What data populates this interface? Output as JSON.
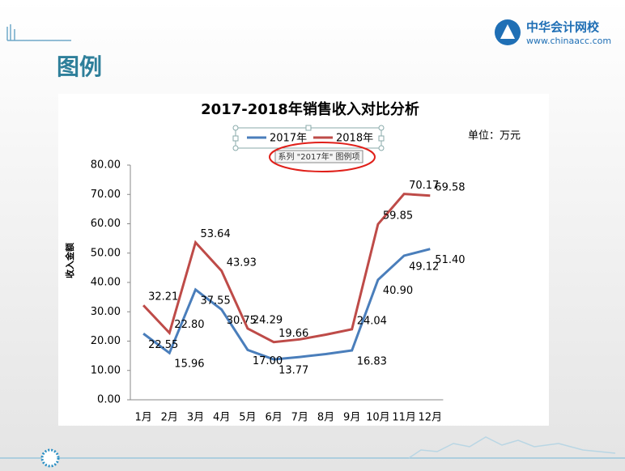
{
  "slide": {
    "title": "图例",
    "logo_name": "中华会计网校",
    "logo_url": "www.chinaacc.com",
    "tooltip": "系列 \"2017年\" 图例项"
  },
  "chart_data": {
    "type": "line",
    "title": "2017-2018年销售收入对比分析",
    "unit": "单位：万元",
    "y_label": "收入金额",
    "categories": [
      "1月",
      "2月",
      "3月",
      "4月",
      "5月",
      "6月",
      "7月",
      "8月",
      "9月",
      "10月",
      "11月",
      "12月"
    ],
    "series": [
      {
        "name": "2017年",
        "color": "#4a7ebb",
        "values": [
          22.55,
          15.96,
          37.55,
          30.75,
          17.0,
          13.77,
          14.6,
          15.6,
          16.83,
          40.9,
          49.12,
          51.4
        ],
        "value_labels": [
          "22.55",
          "15.96",
          "37.55",
          "30.75",
          "17.00",
          "13.77",
          null,
          null,
          "16.83",
          "40.90",
          "49.12",
          "51.40"
        ]
      },
      {
        "name": "2018年",
        "color": "#be4b48",
        "values": [
          32.21,
          22.8,
          53.64,
          43.93,
          24.29,
          19.66,
          20.6,
          22.2,
          24.04,
          59.85,
          70.17,
          69.58
        ],
        "value_labels": [
          "32.21",
          "22.80",
          "53.64",
          "43.93",
          "24.29",
          "19.66",
          null,
          null,
          "24.04",
          "59.85",
          "70.17",
          "69.58"
        ]
      }
    ],
    "ylim": [
      0,
      80
    ],
    "yticks": [
      {
        "value": 0,
        "label": "0.00"
      },
      {
        "value": 10,
        "label": "10.00"
      },
      {
        "value": 20,
        "label": "20.00"
      },
      {
        "value": 30,
        "label": "30.00"
      },
      {
        "value": 40,
        "label": "40.00"
      },
      {
        "value": 50,
        "label": "50.00"
      },
      {
        "value": 60,
        "label": "60.00"
      },
      {
        "value": 70,
        "label": "70.00"
      },
      {
        "value": 80,
        "label": "80.00"
      }
    ],
    "grid": false
  }
}
